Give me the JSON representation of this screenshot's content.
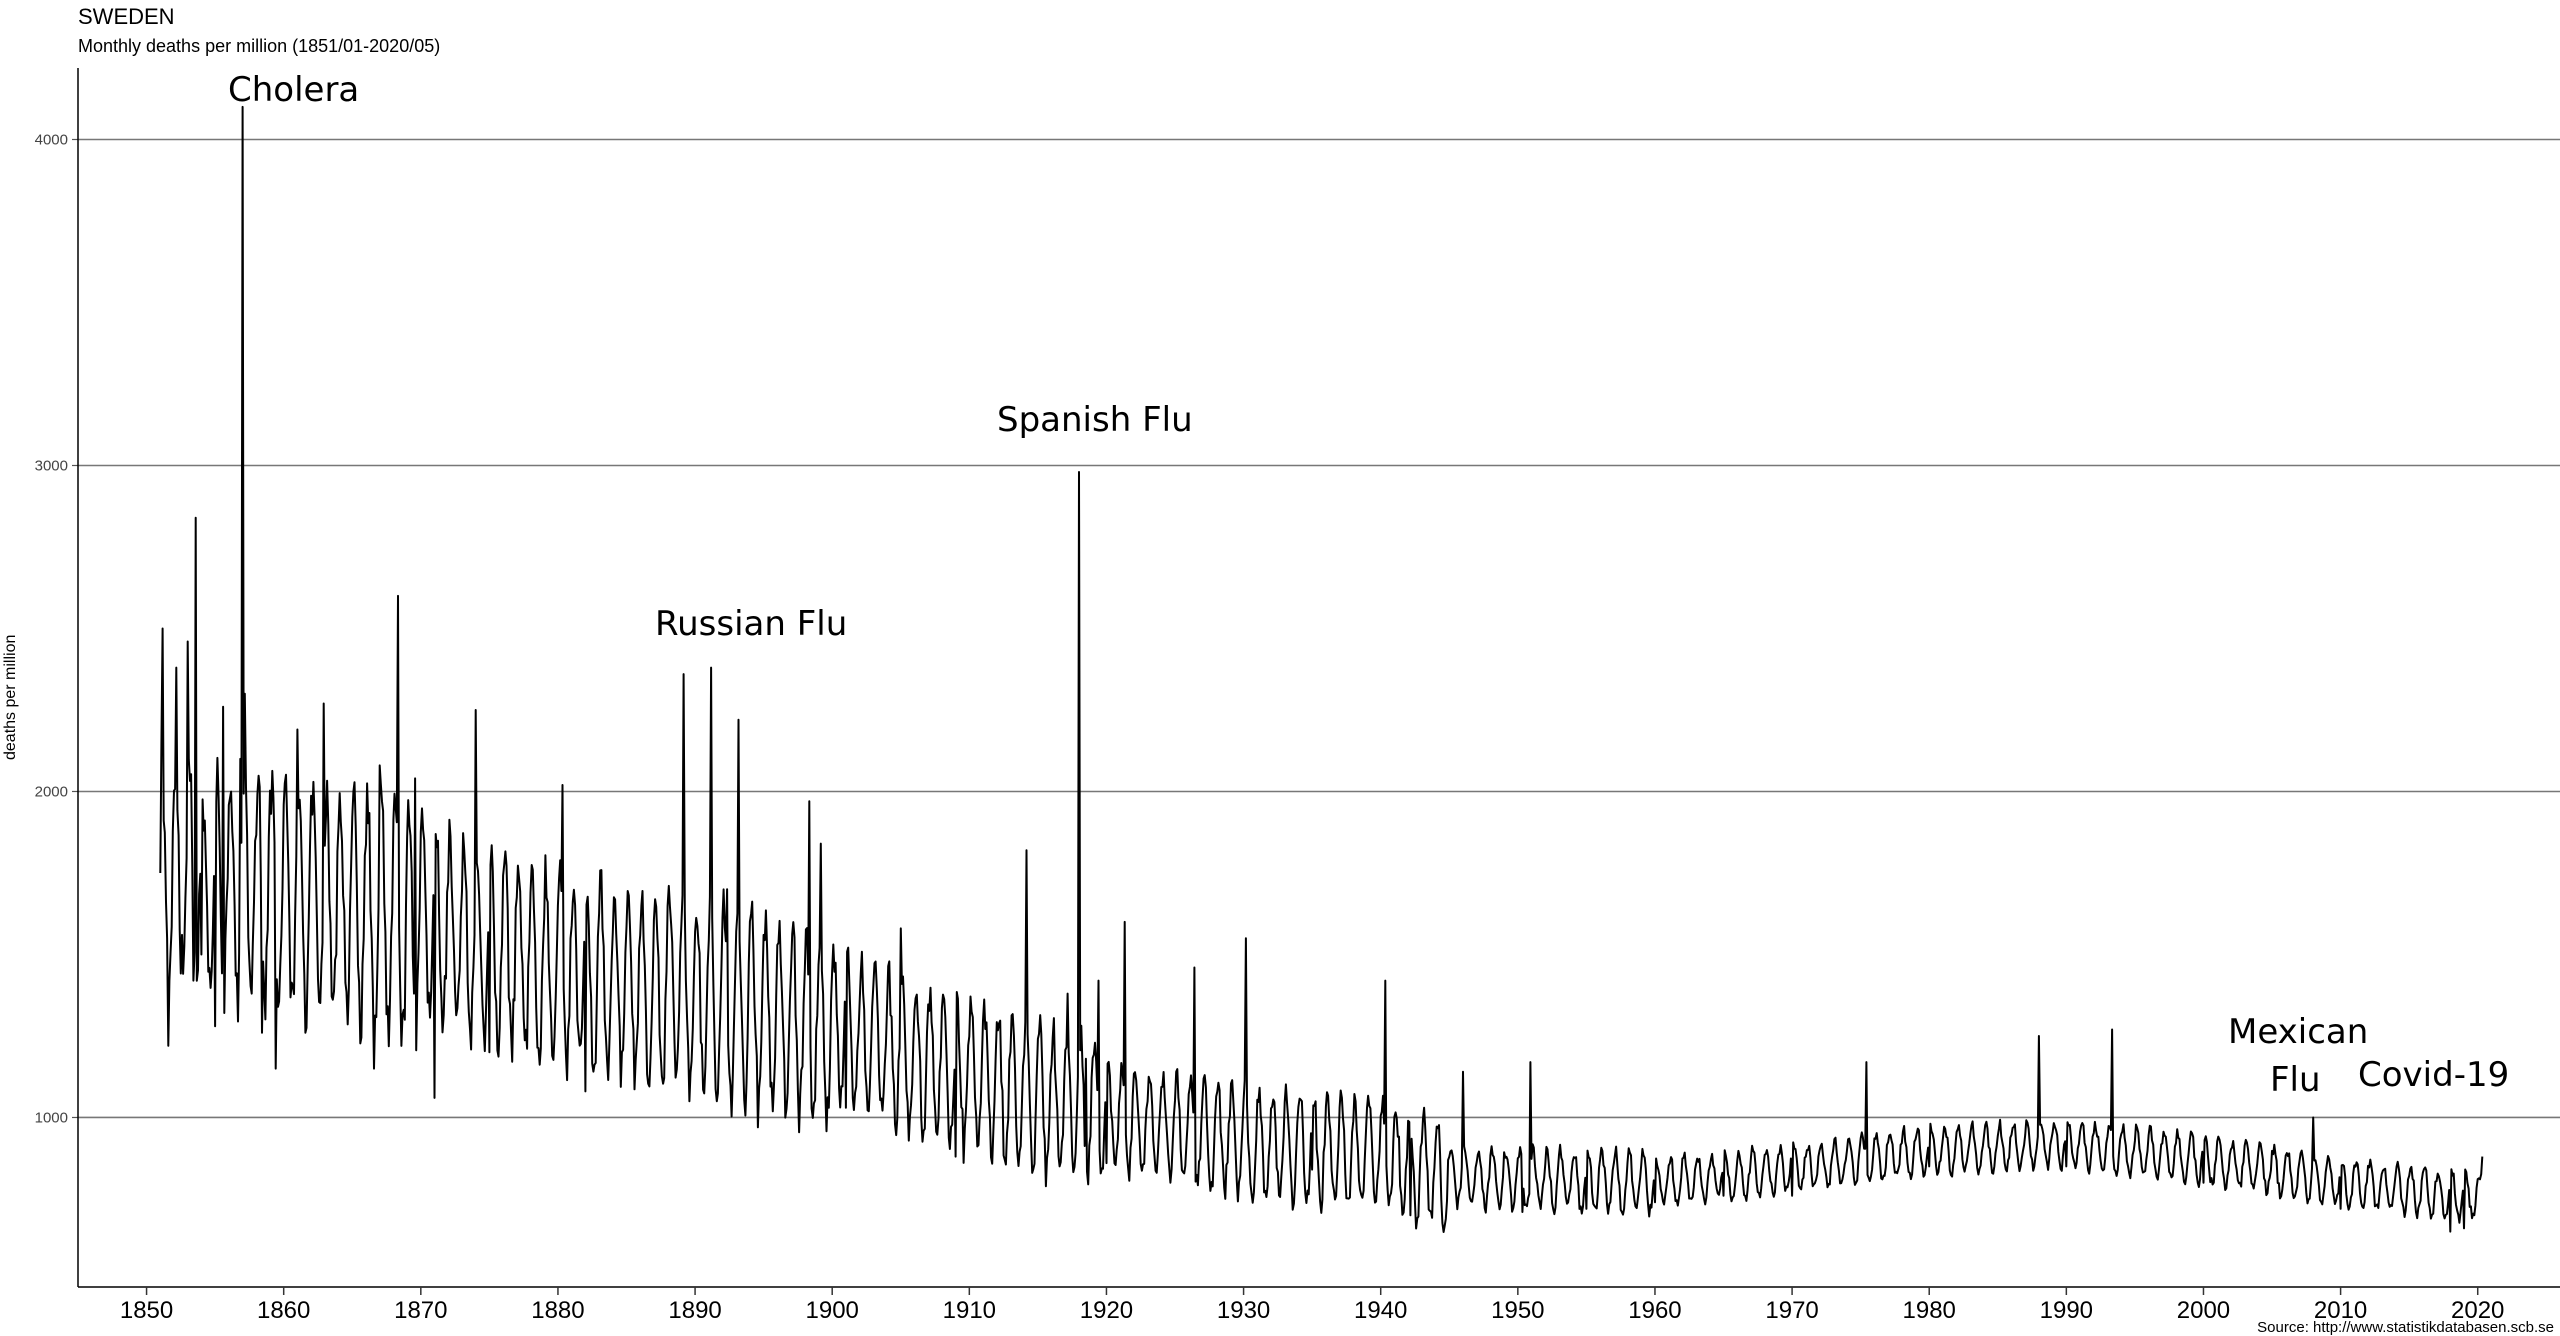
{
  "chart_data": {
    "type": "line",
    "title": "SWEDEN",
    "subtitle": "Monthly deaths per million (1851/01-2020/05)",
    "xlabel": "",
    "ylabel": "deaths per million",
    "source": "Source: http://www.statistikdatabasen.scb.se",
    "xlim": [
      1845,
      2026
    ],
    "ylim": [
      480,
      4250
    ],
    "x_ticks": [
      "1850",
      "1860",
      "1870",
      "1880",
      "1890",
      "1900",
      "1910",
      "1920",
      "1930",
      "1940",
      "1950",
      "1960",
      "1970",
      "1980",
      "1990",
      "2000",
      "2010",
      "2020"
    ],
    "y_ticks": [
      "1000",
      "2000",
      "3000",
      "4000"
    ],
    "grid": "horizontal",
    "annotations": [
      {
        "label": "Cholera"
      },
      {
        "label": "Russian Flu"
      },
      {
        "label": "Spanish Flu"
      },
      {
        "label": "Mexican"
      },
      {
        "label": "Flu"
      },
      {
        "label": "Covid-19"
      }
    ],
    "series": [
      {
        "key_points": [
          {
            "x": 1851.0,
            "y": 1750
          },
          {
            "x": 1851.2,
            "y": 2500
          },
          {
            "x": 1851.6,
            "y": 1220
          },
          {
            "x": 1852.2,
            "y": 2380
          },
          {
            "x": 1852.6,
            "y": 1560
          },
          {
            "x": 1853.0,
            "y": 2460
          },
          {
            "x": 1853.4,
            "y": 1420
          },
          {
            "x": 1853.6,
            "y": 2840
          },
          {
            "x": 1854.0,
            "y": 1500
          },
          {
            "x": 1854.2,
            "y": 1880
          },
          {
            "x": 1855.0,
            "y": 1280
          },
          {
            "x": 1855.6,
            "y": 2260
          },
          {
            "x": 1856.4,
            "y": 1650
          },
          {
            "x": 1856.8,
            "y": 2100
          },
          {
            "x": 1857.0,
            "y": 4100
          },
          {
            "x": 1857.2,
            "y": 2300
          },
          {
            "x": 1857.7,
            "y": 1380
          },
          {
            "x": 1858.4,
            "y": 1260
          },
          {
            "x": 1859.4,
            "y": 1150
          },
          {
            "x": 1861.0,
            "y": 2190
          },
          {
            "x": 1862.9,
            "y": 2270
          },
          {
            "x": 1866.6,
            "y": 1150
          },
          {
            "x": 1867.0,
            "y": 2080
          },
          {
            "x": 1868.3,
            "y": 2600
          },
          {
            "x": 1868.8,
            "y": 1300
          },
          {
            "x": 1869.6,
            "y": 2040
          },
          {
            "x": 1871.0,
            "y": 1060
          },
          {
            "x": 1874.0,
            "y": 2250
          },
          {
            "x": 1875.0,
            "y": 1200
          },
          {
            "x": 1880.3,
            "y": 2020
          },
          {
            "x": 1882.0,
            "y": 1080
          },
          {
            "x": 1889.2,
            "y": 2360
          },
          {
            "x": 1889.6,
            "y": 1050
          },
          {
            "x": 1891.2,
            "y": 2380
          },
          {
            "x": 1891.6,
            "y": 1050
          },
          {
            "x": 1892.3,
            "y": 1700
          },
          {
            "x": 1893.2,
            "y": 2220
          },
          {
            "x": 1894.6,
            "y": 970
          },
          {
            "x": 1898.3,
            "y": 1970
          },
          {
            "x": 1899.2,
            "y": 1840
          },
          {
            "x": 1901.0,
            "y": 1030
          },
          {
            "x": 1905.0,
            "y": 1580
          },
          {
            "x": 1909.0,
            "y": 880
          },
          {
            "x": 1914.2,
            "y": 1820
          },
          {
            "x": 1917.2,
            "y": 1380
          },
          {
            "x": 1918.0,
            "y": 2980
          },
          {
            "x": 1918.5,
            "y": 1180
          },
          {
            "x": 1919.4,
            "y": 1420
          },
          {
            "x": 1920.0,
            "y": 860
          },
          {
            "x": 1921.3,
            "y": 1600
          },
          {
            "x": 1926.4,
            "y": 1460
          },
          {
            "x": 1930.2,
            "y": 1550
          },
          {
            "x": 1935.0,
            "y": 840
          },
          {
            "x": 1940.3,
            "y": 1420
          },
          {
            "x": 1942.2,
            "y": 700
          },
          {
            "x": 1946.0,
            "y": 1140
          },
          {
            "x": 1950.3,
            "y": 710
          },
          {
            "x": 1950.9,
            "y": 1170
          },
          {
            "x": 1955.0,
            "y": 720
          },
          {
            "x": 1960.0,
            "y": 740
          },
          {
            "x": 1965.0,
            "y": 760
          },
          {
            "x": 1970.0,
            "y": 760
          },
          {
            "x": 1975.4,
            "y": 1170
          },
          {
            "x": 1980.0,
            "y": 850
          },
          {
            "x": 1988.0,
            "y": 1250
          },
          {
            "x": 1990.0,
            "y": 850
          },
          {
            "x": 1993.3,
            "y": 1270
          },
          {
            "x": 2000.0,
            "y": 800
          },
          {
            "x": 2008.0,
            "y": 1000
          },
          {
            "x": 2010.0,
            "y": 720
          },
          {
            "x": 2018.0,
            "y": 650
          },
          {
            "x": 2019.0,
            "y": 660
          },
          {
            "x": 2020.3,
            "y": 1020
          },
          {
            "x": 2020.4,
            "y": 880
          }
        ]
      }
    ]
  }
}
